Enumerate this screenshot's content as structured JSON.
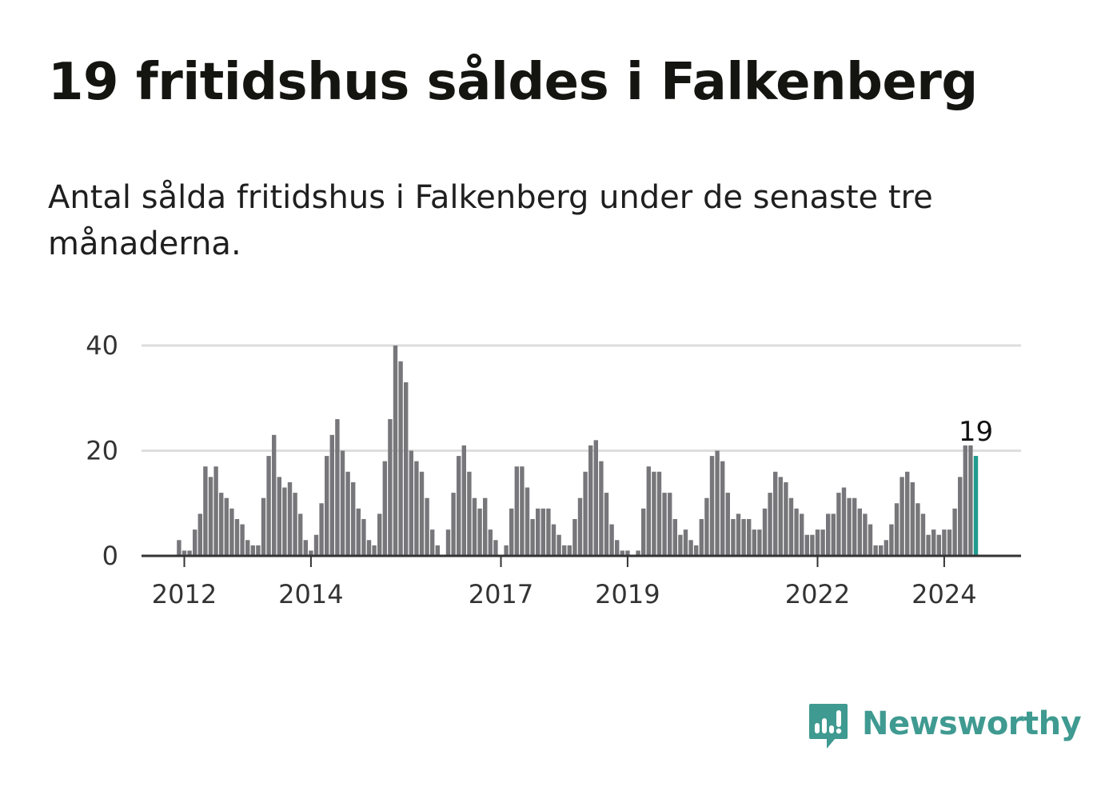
{
  "title": "19 fritidshus såldes i Falkenberg",
  "subtitle": "Antal sålda fritidshus i Falkenberg under de senaste tre månaderna.",
  "brand": {
    "name": "Newsworthy",
    "color": "#3f9a91",
    "icon": "newsworthy-logo-icon"
  },
  "colors": {
    "bar": "#77777b",
    "highlight": "#1f9b8f",
    "grid": "#dddddd",
    "axis": "#333333"
  },
  "chart_data": {
    "type": "bar",
    "title": "19 fritidshus såldes i Falkenberg",
    "subtitle": "Antal sålda fritidshus i Falkenberg under de senaste tre månaderna.",
    "xlabel": "",
    "ylabel": "",
    "ylim": [
      0,
      40
    ],
    "y_ticks": [
      0,
      20,
      40
    ],
    "x_ticks": [
      {
        "label": "2012",
        "index": 0
      },
      {
        "label": "2014",
        "index": 24
      },
      {
        "label": "2017",
        "index": 60
      },
      {
        "label": "2019",
        "index": 84
      },
      {
        "label": "2022",
        "index": 120
      },
      {
        "label": "2024",
        "index": 144
      }
    ],
    "first_bar_offset_months": -1,
    "grid": true,
    "legend": "none",
    "highlight_last": true,
    "last_value_label": "19",
    "values": [
      3,
      1,
      1,
      5,
      8,
      17,
      15,
      17,
      12,
      11,
      9,
      7,
      6,
      3,
      2,
      2,
      11,
      19,
      23,
      15,
      13,
      14,
      12,
      8,
      3,
      1,
      4,
      10,
      19,
      23,
      26,
      20,
      16,
      14,
      9,
      7,
      3,
      2,
      8,
      18,
      26,
      40,
      37,
      33,
      20,
      18,
      16,
      11,
      5,
      2,
      0,
      5,
      12,
      19,
      21,
      16,
      11,
      9,
      11,
      5,
      3,
      0,
      2,
      9,
      17,
      17,
      13,
      7,
      9,
      9,
      9,
      6,
      4,
      2,
      2,
      7,
      11,
      16,
      21,
      22,
      18,
      12,
      6,
      3,
      1,
      1,
      0,
      1,
      9,
      17,
      16,
      16,
      12,
      12,
      7,
      4,
      5,
      3,
      2,
      7,
      11,
      19,
      20,
      18,
      12,
      7,
      8,
      7,
      7,
      5,
      5,
      9,
      12,
      16,
      15,
      14,
      11,
      9,
      8,
      4,
      4,
      5,
      5,
      8,
      8,
      12,
      13,
      11,
      11,
      9,
      8,
      6,
      2,
      2,
      3,
      6,
      10,
      15,
      16,
      14,
      10,
      8,
      4,
      5,
      4,
      5,
      5,
      9,
      15,
      21,
      21,
      19
    ]
  }
}
